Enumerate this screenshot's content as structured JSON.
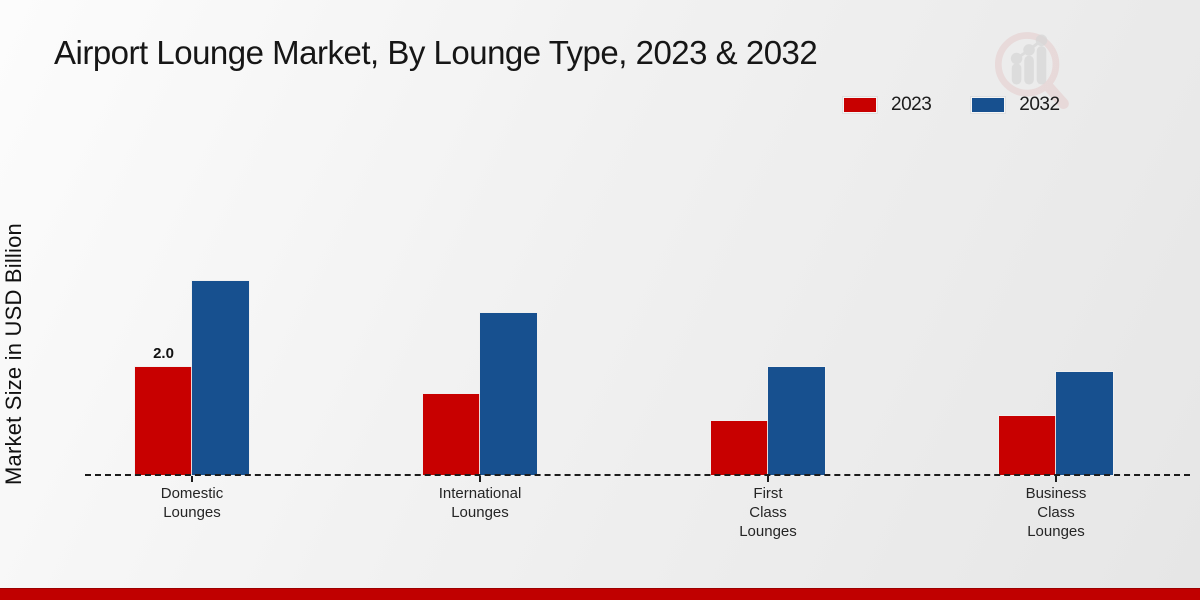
{
  "page": {
    "watermark_icon": "magnifier-growth-chart-logo",
    "footer_bar_color": "#c00000",
    "background_color": "#ededed"
  },
  "chart_data": {
    "type": "bar",
    "title": "Airport Lounge Market, By Lounge Type, 2023 & 2032",
    "xlabel": "",
    "ylabel": "Market Size in USD Billion",
    "categories": [
      "Domestic Lounges",
      "International Lounges",
      "First Class Lounges",
      "Business Class Lounges"
    ],
    "category_label_lines": [
      [
        "Domestic",
        "Lounges"
      ],
      [
        "International",
        "Lounges"
      ],
      [
        "First",
        "Class",
        "Lounges"
      ],
      [
        "Business",
        "Class",
        "Lounges"
      ]
    ],
    "series": [
      {
        "name": "2023",
        "color": "#c80000",
        "values": [
          2.0,
          1.5,
          1.0,
          1.1
        ]
      },
      {
        "name": "2032",
        "color": "#17508f",
        "values": [
          3.6,
          3.0,
          2.0,
          1.9
        ]
      }
    ],
    "data_labels": [
      {
        "series": "2023",
        "category": "Domestic Lounges",
        "text": "2.0"
      }
    ],
    "ylim": [
      0,
      4
    ],
    "grid": false,
    "y_ticks_visible": false,
    "legend_position": "top-right",
    "baseline_style": "dashed"
  }
}
